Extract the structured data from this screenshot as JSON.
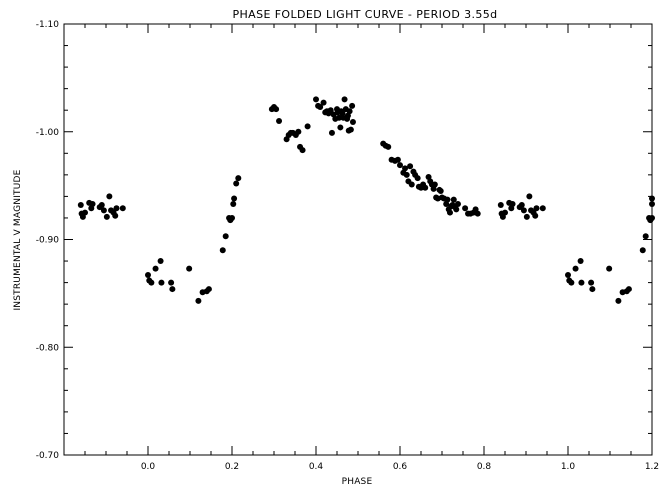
{
  "chart_data": {
    "type": "scatter",
    "title": "PHASE FOLDED LIGHT CURVE - PERIOD 3.55d",
    "xlabel": "PHASE",
    "ylabel": "INSTRUMENTAL V MAGNITUDE",
    "xlim": [
      -0.2,
      1.2
    ],
    "ylim": [
      -0.7,
      -1.1
    ],
    "y_axis_inverted": true,
    "x_ticks": [
      "0.0",
      "0.2",
      "0.4",
      "0.6",
      "0.8",
      "1.0",
      "1.2"
    ],
    "y_ticks": [
      "-1.10",
      "-1.00",
      "-0.90",
      "-0.80",
      "-0.70"
    ],
    "marker_color": "#000000",
    "grid": false,
    "series": [
      {
        "points": [
          [
            -0.16,
            -0.932
          ],
          [
            -0.158,
            -0.924
          ],
          [
            -0.155,
            -0.921
          ],
          [
            -0.15,
            -0.925
          ],
          [
            -0.14,
            -0.934
          ],
          [
            -0.135,
            -0.929
          ],
          [
            -0.132,
            -0.933
          ],
          [
            -0.115,
            -0.93
          ],
          [
            -0.11,
            -0.932
          ],
          [
            -0.105,
            -0.927
          ],
          [
            -0.098,
            -0.921
          ],
          [
            -0.092,
            -0.94
          ],
          [
            -0.088,
            -0.927
          ],
          [
            -0.082,
            -0.925
          ],
          [
            -0.078,
            -0.922
          ],
          [
            -0.075,
            -0.929
          ],
          [
            -0.06,
            -0.929
          ],
          [
            0.0,
            -0.867
          ],
          [
            0.003,
            -0.862
          ],
          [
            0.008,
            -0.86
          ],
          [
            0.018,
            -0.873
          ],
          [
            0.03,
            -0.88
          ],
          [
            0.032,
            -0.86
          ],
          [
            0.055,
            -0.86
          ],
          [
            0.058,
            -0.854
          ],
          [
            0.098,
            -0.873
          ],
          [
            0.12,
            -0.843
          ],
          [
            0.13,
            -0.851
          ],
          [
            0.14,
            -0.852
          ],
          [
            0.145,
            -0.854
          ],
          [
            0.178,
            -0.89
          ],
          [
            0.185,
            -0.903
          ],
          [
            0.193,
            -0.92
          ],
          [
            0.196,
            -0.918
          ],
          [
            0.2,
            -0.92
          ],
          [
            0.203,
            -0.933
          ],
          [
            0.205,
            -0.938
          ],
          [
            0.21,
            -0.952
          ],
          [
            0.215,
            -0.957
          ],
          [
            0.295,
            -1.021
          ],
          [
            0.3,
            -1.023
          ],
          [
            0.305,
            -1.021
          ],
          [
            0.312,
            -1.01
          ],
          [
            0.33,
            -0.993
          ],
          [
            0.335,
            -0.997
          ],
          [
            0.34,
            -0.999
          ],
          [
            0.345,
            -0.999
          ],
          [
            0.352,
            -0.997
          ],
          [
            0.358,
            -1.0
          ],
          [
            0.362,
            -0.986
          ],
          [
            0.368,
            -0.983
          ],
          [
            0.38,
            -1.005
          ],
          [
            0.4,
            -1.03
          ],
          [
            0.405,
            -1.024
          ],
          [
            0.41,
            -1.023
          ],
          [
            0.418,
            -1.027
          ],
          [
            0.422,
            -1.018
          ],
          [
            0.426,
            -1.019
          ],
          [
            0.43,
            -1.017
          ],
          [
            0.435,
            -1.02
          ],
          [
            0.438,
            -0.999
          ],
          [
            0.442,
            -1.016
          ],
          [
            0.446,
            -1.012
          ],
          [
            0.45,
            -1.021
          ],
          [
            0.452,
            -1.018
          ],
          [
            0.455,
            -1.013
          ],
          [
            0.458,
            -1.004
          ],
          [
            0.46,
            -1.019
          ],
          [
            0.463,
            -1.017
          ],
          [
            0.465,
            -1.013
          ],
          [
            0.468,
            -1.03
          ],
          [
            0.471,
            -1.021
          ],
          [
            0.474,
            -1.012
          ],
          [
            0.476,
            -1.015
          ],
          [
            0.478,
            -1.001
          ],
          [
            0.48,
            -1.019
          ],
          [
            0.483,
            -1.002
          ],
          [
            0.486,
            -1.024
          ],
          [
            0.488,
            -1.009
          ],
          [
            0.56,
            -0.989
          ],
          [
            0.566,
            -0.987
          ],
          [
            0.572,
            -0.986
          ],
          [
            0.58,
            -0.974
          ],
          [
            0.588,
            -0.973
          ],
          [
            0.595,
            -0.974
          ],
          [
            0.6,
            -0.969
          ],
          [
            0.608,
            -0.962
          ],
          [
            0.612,
            -0.966
          ],
          [
            0.616,
            -0.96
          ],
          [
            0.62,
            -0.954
          ],
          [
            0.624,
            -0.968
          ],
          [
            0.628,
            -0.951
          ],
          [
            0.632,
            -0.963
          ],
          [
            0.636,
            -0.96
          ],
          [
            0.642,
            -0.957
          ],
          [
            0.645,
            -0.949
          ],
          [
            0.65,
            -0.948
          ],
          [
            0.655,
            -0.951
          ],
          [
            0.66,
            -0.948
          ],
          [
            0.668,
            -0.958
          ],
          [
            0.672,
            -0.954
          ],
          [
            0.676,
            -0.951
          ],
          [
            0.68,
            -0.947
          ],
          [
            0.683,
            -0.951
          ],
          [
            0.686,
            -0.939
          ],
          [
            0.69,
            -0.938
          ],
          [
            0.694,
            -0.946
          ],
          [
            0.697,
            -0.945
          ],
          [
            0.7,
            -0.939
          ],
          [
            0.705,
            -0.938
          ],
          [
            0.71,
            -0.933
          ],
          [
            0.713,
            -0.937
          ],
          [
            0.716,
            -0.928
          ],
          [
            0.719,
            -0.925
          ],
          [
            0.722,
            -0.931
          ],
          [
            0.725,
            -0.932
          ],
          [
            0.728,
            -0.937
          ],
          [
            0.731,
            -0.93
          ],
          [
            0.734,
            -0.928
          ],
          [
            0.738,
            -0.933
          ],
          [
            0.755,
            -0.929
          ],
          [
            0.762,
            -0.924
          ],
          [
            0.768,
            -0.924
          ],
          [
            0.775,
            -0.925
          ],
          [
            0.78,
            -0.928
          ],
          [
            0.785,
            -0.924
          ],
          [
            0.84,
            -0.932
          ],
          [
            0.842,
            -0.924
          ],
          [
            0.845,
            -0.921
          ],
          [
            0.85,
            -0.925
          ],
          [
            0.86,
            -0.934
          ],
          [
            0.865,
            -0.929
          ],
          [
            0.868,
            -0.933
          ],
          [
            0.885,
            -0.93
          ],
          [
            0.89,
            -0.932
          ],
          [
            0.895,
            -0.927
          ],
          [
            0.902,
            -0.921
          ],
          [
            0.908,
            -0.94
          ],
          [
            0.912,
            -0.927
          ],
          [
            0.918,
            -0.925
          ],
          [
            0.922,
            -0.922
          ],
          [
            0.925,
            -0.929
          ],
          [
            0.94,
            -0.929
          ],
          [
            1.0,
            -0.867
          ],
          [
            1.003,
            -0.862
          ],
          [
            1.008,
            -0.86
          ],
          [
            1.018,
            -0.873
          ],
          [
            1.03,
            -0.88
          ],
          [
            1.032,
            -0.86
          ],
          [
            1.055,
            -0.86
          ],
          [
            1.058,
            -0.854
          ],
          [
            1.098,
            -0.873
          ],
          [
            1.12,
            -0.843
          ],
          [
            1.13,
            -0.851
          ],
          [
            1.14,
            -0.852
          ],
          [
            1.145,
            -0.854
          ],
          [
            1.178,
            -0.89
          ],
          [
            1.185,
            -0.903
          ],
          [
            1.193,
            -0.92
          ],
          [
            1.196,
            -0.918
          ],
          [
            1.2,
            -0.92
          ],
          [
            1.2,
            -0.933
          ],
          [
            1.2,
            -0.938
          ]
        ]
      }
    ]
  }
}
